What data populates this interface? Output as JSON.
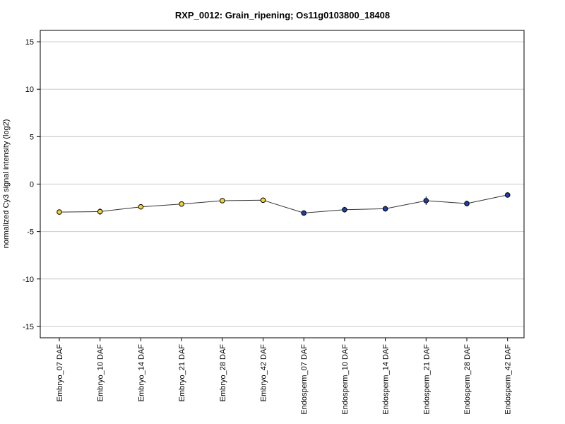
{
  "chart_data": {
    "type": "line",
    "title": "RXP_0012: Grain_ripening; Os11g0103800_18408",
    "xlabel": "",
    "ylabel": "normalized Cy3 signal intensity (log2)",
    "ylim": [
      -16.2,
      16.2
    ],
    "yticks": [
      -15,
      -10,
      -5,
      0,
      5,
      10,
      15
    ],
    "grid": true,
    "categories": [
      "Embryo_07 DAF",
      "Embryo_10 DAF",
      "Embryo_14 DAF",
      "Embryo_21 DAF",
      "Embryo_28 DAF",
      "Embryo_42 DAF",
      "Endosperm_07 DAF",
      "Endosperm_10 DAF",
      "Endosperm_14 DAF",
      "Endosperm_21 DAF",
      "Endosperm_28 DAF",
      "Endosperm_42 DAF"
    ],
    "series": [
      {
        "values": [
          -2.95,
          -2.9,
          -2.4,
          -2.1,
          -1.75,
          -1.7,
          -3.05,
          -2.7,
          -2.6,
          -1.75,
          -2.05,
          -1.15
        ],
        "errors": [
          0.2,
          0.35,
          0.2,
          0.15,
          0.15,
          0.15,
          0.15,
          0.3,
          0.3,
          0.45,
          0.3,
          0.15
        ],
        "point_colors": [
          "#f2d23a",
          "#f2d23a",
          "#f2d23a",
          "#f2d23a",
          "#f2d23a",
          "#f2d23a",
          "#1f3fa8",
          "#1f3fa8",
          "#1f3fa8",
          "#1f3fa8",
          "#1f3fa8",
          "#1f3fa8"
        ]
      }
    ]
  }
}
